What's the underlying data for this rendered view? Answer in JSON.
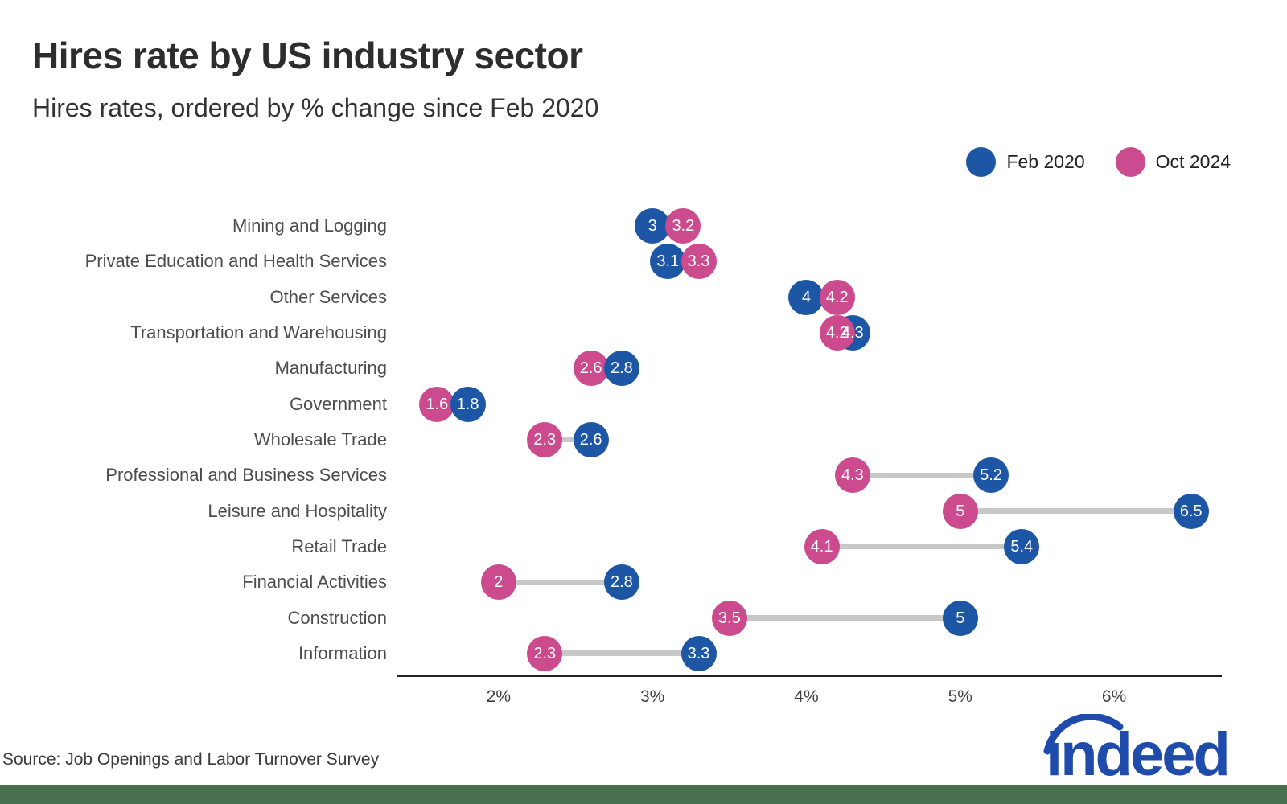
{
  "header": {
    "title": "Hires rate by US industry sector",
    "subtitle": "Hires rates, ordered by % change since Feb 2020"
  },
  "legend": {
    "items": [
      {
        "label": "Feb 2020",
        "color": "#1d56a5"
      },
      {
        "label": "Oct 2024",
        "color": "#cb4b8e"
      }
    ]
  },
  "chart_data": {
    "type": "dumbbell",
    "title": "Hires rate by US industry sector",
    "subtitle": "Hires rates, ordered by % change since Feb 2020",
    "unit": "%",
    "legend_position": "top-right",
    "grid": false,
    "connector_color": "#c8c8c8",
    "series": [
      {
        "name": "Feb 2020",
        "color": "#1d56a5"
      },
      {
        "name": "Oct 2024",
        "color": "#cb4b8e"
      }
    ],
    "categories": [
      "Mining and Logging",
      "Private Education and Health Services",
      "Other Services",
      "Transportation and Warehousing",
      "Manufacturing",
      "Government",
      "Wholesale Trade",
      "Professional and Business Services",
      "Leisure and Hospitality",
      "Retail Trade",
      "Financial Activities",
      "Construction",
      "Information"
    ],
    "rows": [
      {
        "label": "Mining and Logging",
        "feb_2020": 3,
        "oct_2024": 3.2,
        "front": "oct"
      },
      {
        "label": "Private Education and Health Services",
        "feb_2020": 3.1,
        "oct_2024": 3.3,
        "front": "oct"
      },
      {
        "label": "Other Services",
        "feb_2020": 4,
        "oct_2024": 4.2,
        "front": "oct"
      },
      {
        "label": "Transportation and Warehousing",
        "feb_2020": 4.3,
        "oct_2024": 4.2,
        "front": "oct"
      },
      {
        "label": "Manufacturing",
        "feb_2020": 2.8,
        "oct_2024": 2.6,
        "front": "feb"
      },
      {
        "label": "Government",
        "feb_2020": 1.8,
        "oct_2024": 1.6,
        "front": "feb"
      },
      {
        "label": "Wholesale Trade",
        "feb_2020": 2.6,
        "oct_2024": 2.3,
        "front": "feb"
      },
      {
        "label": "Professional and Business Services",
        "feb_2020": 5.2,
        "oct_2024": 4.3,
        "front": "feb"
      },
      {
        "label": "Leisure and Hospitality",
        "feb_2020": 6.5,
        "oct_2024": 5,
        "front": "feb"
      },
      {
        "label": "Retail Trade",
        "feb_2020": 5.4,
        "oct_2024": 4.1,
        "front": "feb"
      },
      {
        "label": "Financial Activities",
        "feb_2020": 2.8,
        "oct_2024": 2,
        "front": "feb"
      },
      {
        "label": "Construction",
        "feb_2020": 5,
        "oct_2024": 3.5,
        "front": "feb"
      },
      {
        "label": "Information",
        "feb_2020": 3.3,
        "oct_2024": 2.3,
        "front": "feb"
      }
    ],
    "x_axis": {
      "tick_labels": [
        "2%",
        "3%",
        "4%",
        "5%",
        "6%"
      ],
      "tick_values": [
        2,
        3,
        4,
        5,
        6
      ],
      "min": 1.34,
      "max": 6.7
    }
  },
  "footer": {
    "source": "Source: Job Openings and Labor Turnover Survey",
    "brand": "indeed",
    "brand_color": "#1f4bad",
    "bar_color": "#48704e"
  }
}
